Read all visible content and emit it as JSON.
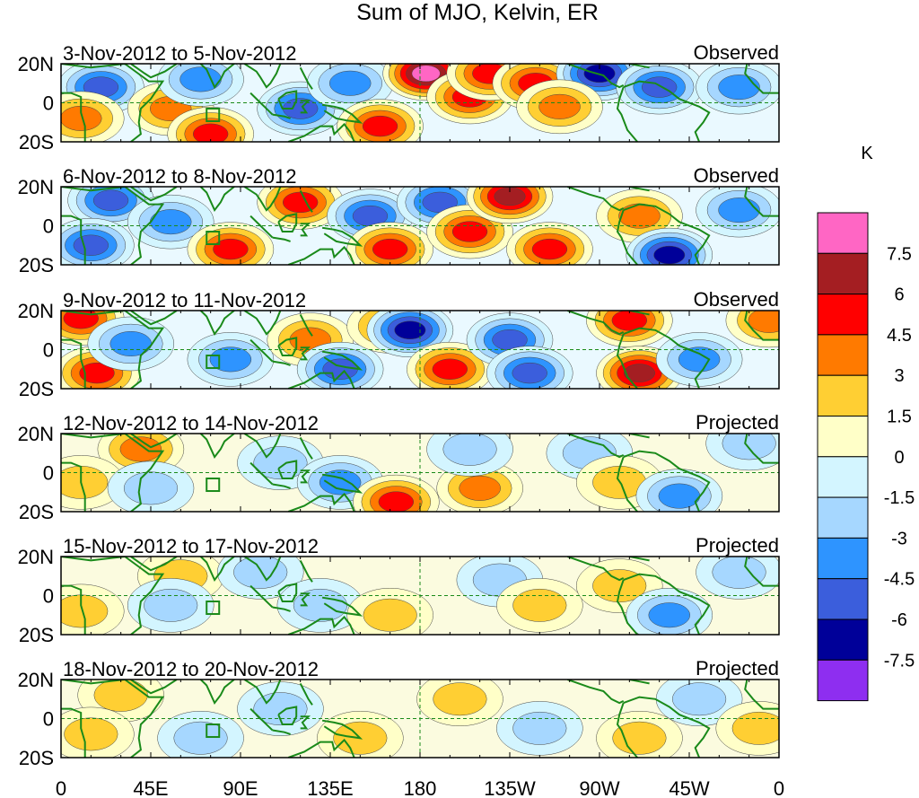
{
  "chart_data": {
    "type": "heatmap",
    "title": "Sum of MJO, Kelvin, ER",
    "units": "K",
    "lat_range": [
      -20,
      20
    ],
    "lon_range": [
      0,
      360
    ],
    "lat_ticks": [
      "20N",
      "0",
      "20S"
    ],
    "lon_ticks": [
      "0",
      "45E",
      "90E",
      "135E",
      "180",
      "135W",
      "90W",
      "45W",
      "0"
    ],
    "colorbar": {
      "labels": [
        "7.5",
        "6",
        "4.5",
        "3",
        "1.5",
        "0",
        "-1.5",
        "-3",
        "-4.5",
        "-6",
        "-7.5"
      ],
      "colors": [
        "#ff66c4",
        "#a41e22",
        "#ff0000",
        "#ff7a00",
        "#ffcf33",
        "#ffffc8",
        "#d3f5ff",
        "#a6d7ff",
        "#2e94ff",
        "#3b5edc",
        "#000099",
        "#8e2ef0"
      ]
    },
    "panels": [
      {
        "period": "3-Nov-2012 to 5-Nov-2012",
        "status": "Observed",
        "anomalies": [
          {
            "lon": 20,
            "lat": 8,
            "v": -4.5
          },
          {
            "lon": 10,
            "lat": -8,
            "v": 3
          },
          {
            "lon": 55,
            "lat": -3,
            "v": 3
          },
          {
            "lon": 70,
            "lat": 12,
            "v": -3
          },
          {
            "lon": 75,
            "lat": -16,
            "v": 4.5
          },
          {
            "lon": 120,
            "lat": -3,
            "v": -4.5
          },
          {
            "lon": 145,
            "lat": 10,
            "v": -3
          },
          {
            "lon": 160,
            "lat": -12,
            "v": 4.5
          },
          {
            "lon": 183,
            "lat": 15,
            "v": 7.5
          },
          {
            "lon": 205,
            "lat": 3,
            "v": 4.5
          },
          {
            "lon": 215,
            "lat": 15,
            "v": 4.5
          },
          {
            "lon": 238,
            "lat": 10,
            "v": 4.5
          },
          {
            "lon": 270,
            "lat": 15,
            "v": -6
          },
          {
            "lon": 300,
            "lat": 8,
            "v": -4.5
          },
          {
            "lon": 250,
            "lat": -2,
            "v": 3
          },
          {
            "lon": 340,
            "lat": 8,
            "v": -3
          }
        ]
      },
      {
        "period": "6-Nov-2012 to 8-Nov-2012",
        "status": "Observed",
        "anomalies": [
          {
            "lon": 25,
            "lat": 13,
            "v": -4.5
          },
          {
            "lon": 15,
            "lat": -10,
            "v": -4.5
          },
          {
            "lon": 55,
            "lat": 2,
            "v": -3
          },
          {
            "lon": 85,
            "lat": -12,
            "v": 4.5
          },
          {
            "lon": 120,
            "lat": 12,
            "v": 4.5
          },
          {
            "lon": 155,
            "lat": 5,
            "v": -4.5
          },
          {
            "lon": 165,
            "lat": -12,
            "v": 4.5
          },
          {
            "lon": 190,
            "lat": 12,
            "v": -4.5
          },
          {
            "lon": 205,
            "lat": -3,
            "v": 4.5
          },
          {
            "lon": 225,
            "lat": 15,
            "v": 6
          },
          {
            "lon": 245,
            "lat": -12,
            "v": 4.5
          },
          {
            "lon": 290,
            "lat": 5,
            "v": 3
          },
          {
            "lon": 305,
            "lat": -15,
            "v": -6
          },
          {
            "lon": 340,
            "lat": 8,
            "v": -3
          }
        ]
      },
      {
        "period": "9-Nov-2012 to 11-Nov-2012",
        "status": "Observed",
        "anomalies": [
          {
            "lon": 10,
            "lat": 16,
            "v": 4.5
          },
          {
            "lon": 18,
            "lat": -12,
            "v": 4.5
          },
          {
            "lon": 35,
            "lat": 3,
            "v": -3
          },
          {
            "lon": 85,
            "lat": -5,
            "v": -3
          },
          {
            "lon": 125,
            "lat": 5,
            "v": 3
          },
          {
            "lon": 140,
            "lat": -10,
            "v": -4.5
          },
          {
            "lon": 165,
            "lat": 12,
            "v": 3
          },
          {
            "lon": 175,
            "lat": 10,
            "v": -6
          },
          {
            "lon": 195,
            "lat": -10,
            "v": 4.5
          },
          {
            "lon": 225,
            "lat": 5,
            "v": -4.5
          },
          {
            "lon": 235,
            "lat": -12,
            "v": -4.5
          },
          {
            "lon": 285,
            "lat": 15,
            "v": 4.5
          },
          {
            "lon": 290,
            "lat": -12,
            "v": 6
          },
          {
            "lon": 320,
            "lat": -5,
            "v": -3
          },
          {
            "lon": 355,
            "lat": 15,
            "v": 3
          }
        ]
      },
      {
        "period": "12-Nov-2012 to 14-Nov-2012",
        "status": "Projected",
        "anomalies": [
          {
            "lon": 40,
            "lat": 12,
            "v": 3
          },
          {
            "lon": 10,
            "lat": -5,
            "v": 1.5
          },
          {
            "lon": 45,
            "lat": -8,
            "v": -1.5
          },
          {
            "lon": 110,
            "lat": 5,
            "v": -1.5
          },
          {
            "lon": 140,
            "lat": -5,
            "v": -3
          },
          {
            "lon": 168,
            "lat": -15,
            "v": 4.5
          },
          {
            "lon": 210,
            "lat": -8,
            "v": 3
          },
          {
            "lon": 205,
            "lat": 12,
            "v": -1.5
          },
          {
            "lon": 265,
            "lat": 10,
            "v": -1.5
          },
          {
            "lon": 280,
            "lat": -5,
            "v": 1.5
          },
          {
            "lon": 310,
            "lat": -12,
            "v": -3
          },
          {
            "lon": 345,
            "lat": 15,
            "v": -1.5
          }
        ]
      },
      {
        "period": "15-Nov-2012 to 17-Nov-2012",
        "status": "Projected",
        "anomalies": [
          {
            "lon": 60,
            "lat": 10,
            "v": 1.5
          },
          {
            "lon": 10,
            "lat": -8,
            "v": 1.5
          },
          {
            "lon": 55,
            "lat": -5,
            "v": -1.5
          },
          {
            "lon": 100,
            "lat": 12,
            "v": -1.5
          },
          {
            "lon": 130,
            "lat": -5,
            "v": -1.5
          },
          {
            "lon": 165,
            "lat": -10,
            "v": 1.5
          },
          {
            "lon": 220,
            "lat": 8,
            "v": -1.5
          },
          {
            "lon": 240,
            "lat": -5,
            "v": 1.5
          },
          {
            "lon": 280,
            "lat": 5,
            "v": 1.5
          },
          {
            "lon": 305,
            "lat": -10,
            "v": -3
          },
          {
            "lon": 340,
            "lat": 12,
            "v": -1.5
          }
        ]
      },
      {
        "period": "18-Nov-2012 to 20-Nov-2012",
        "status": "Projected",
        "anomalies": [
          {
            "lon": 30,
            "lat": 12,
            "v": 1.5
          },
          {
            "lon": 15,
            "lat": -8,
            "v": 1.5
          },
          {
            "lon": 70,
            "lat": -10,
            "v": -1.5
          },
          {
            "lon": 110,
            "lat": 5,
            "v": -1.5
          },
          {
            "lon": 150,
            "lat": -10,
            "v": 1.5
          },
          {
            "lon": 200,
            "lat": 10,
            "v": 1.5
          },
          {
            "lon": 240,
            "lat": -5,
            "v": -1.5
          },
          {
            "lon": 290,
            "lat": -10,
            "v": 1.5
          },
          {
            "lon": 320,
            "lat": 10,
            "v": -1.5
          },
          {
            "lon": 350,
            "lat": -5,
            "v": 1.5
          }
        ]
      }
    ]
  }
}
